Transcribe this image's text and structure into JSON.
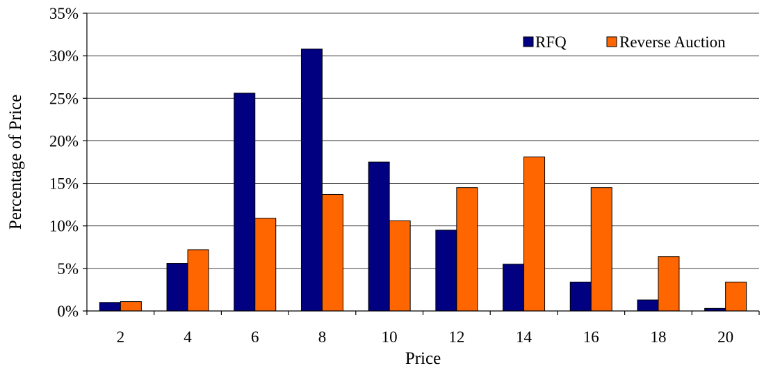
{
  "chart_data": {
    "type": "bar",
    "categories": [
      "2",
      "4",
      "6",
      "8",
      "10",
      "12",
      "14",
      "16",
      "18",
      "20"
    ],
    "series": [
      {
        "name": "RFQ",
        "color": "#000080",
        "values": [
          1.0,
          5.6,
          25.6,
          30.8,
          17.5,
          9.5,
          5.5,
          3.4,
          1.3,
          0.3
        ]
      },
      {
        "name": "Reverse Auction",
        "color": "#FF6600",
        "values": [
          1.1,
          7.2,
          10.9,
          13.7,
          10.6,
          14.5,
          18.1,
          14.5,
          6.4,
          3.4
        ]
      }
    ],
    "xlabel": "Price",
    "ylabel": "Percentage of Price",
    "ylim": [
      0,
      35
    ],
    "yticks": [
      "0%",
      "5%",
      "10%",
      "15%",
      "20%",
      "25%",
      "30%",
      "35%"
    ],
    "grid": true,
    "legend_position": "top-right"
  }
}
